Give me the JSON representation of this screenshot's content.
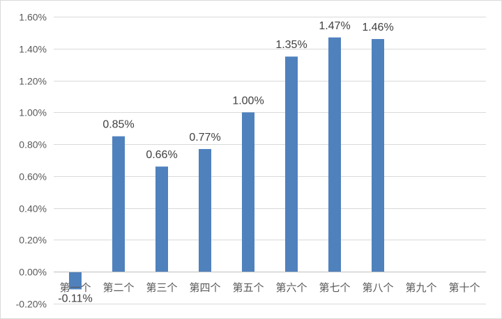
{
  "chart_data": {
    "type": "bar",
    "categories": [
      "第一个",
      "第二个",
      "第三个",
      "第四个",
      "第五个",
      "第六个",
      "第七个",
      "第八个",
      "第九个",
      "第十个"
    ],
    "values": [
      -0.11,
      0.85,
      0.66,
      0.77,
      1.0,
      1.35,
      1.47,
      1.46,
      null,
      null
    ],
    "data_labels": [
      "-0.11%",
      "0.85%",
      "0.66%",
      "0.77%",
      "1.00%",
      "1.35%",
      "1.47%",
      "1.46%",
      "",
      ""
    ],
    "y_ticks": [
      -0.2,
      0.0,
      0.2,
      0.4,
      0.6,
      0.8,
      1.0,
      1.2,
      1.4,
      1.6
    ],
    "y_tick_labels": [
      "-0.20%",
      "0.00%",
      "0.20%",
      "0.40%",
      "0.60%",
      "0.80%",
      "1.00%",
      "1.20%",
      "1.40%",
      "1.60%"
    ],
    "ylim": [
      -0.2,
      1.6
    ],
    "unit": "%",
    "grid": true,
    "legend": "none",
    "bar_color": "#4f81bd",
    "title": "",
    "xlabel": "",
    "ylabel": ""
  }
}
